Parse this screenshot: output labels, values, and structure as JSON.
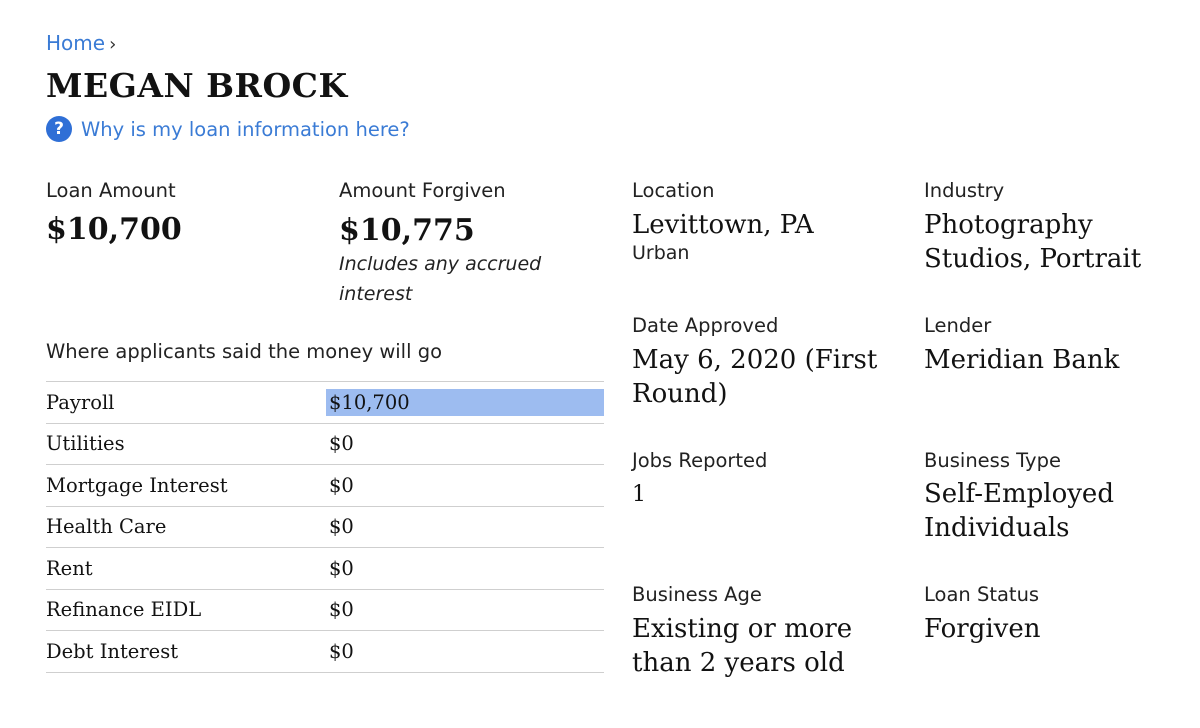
{
  "breadcrumb": {
    "home": "Home",
    "separator": "›"
  },
  "title": "MEGAN BROCK",
  "help_link": {
    "icon": "question-icon",
    "icon_glyph": "?",
    "text": "Why is my loan information here?"
  },
  "loan_amount": {
    "label": "Loan Amount",
    "value": "$10,700"
  },
  "amount_forgiven": {
    "label": "Amount Forgiven",
    "value": "$10,775",
    "note": "Includes any accrued interest"
  },
  "allocation": {
    "heading": "Where applicants said the money will go",
    "rows": [
      {
        "category": "Payroll",
        "amount": "$10,700",
        "highlighted": true
      },
      {
        "category": "Utilities",
        "amount": "$0"
      },
      {
        "category": "Mortgage Interest",
        "amount": "$0"
      },
      {
        "category": "Health Care",
        "amount": "$0"
      },
      {
        "category": "Rent",
        "amount": "$0"
      },
      {
        "category": "Refinance EIDL",
        "amount": "$0"
      },
      {
        "category": "Debt Interest",
        "amount": "$0"
      }
    ]
  },
  "details": {
    "location": {
      "label": "Location",
      "value": "Levittown, PA",
      "sub": "Urban"
    },
    "industry": {
      "label": "Industry",
      "value": "Photography Studios, Portrait"
    },
    "date_approved": {
      "label": "Date Approved",
      "value": "May 6, 2020 (First Round)"
    },
    "lender": {
      "label": "Lender",
      "value": "Meridian Bank"
    },
    "jobs_reported": {
      "label": "Jobs Reported",
      "value": "1"
    },
    "business_type": {
      "label": "Business Type",
      "value": "Self-Employed Individuals"
    },
    "business_age": {
      "label": "Business Age",
      "value": "Existing or more than 2 years old"
    },
    "loan_status": {
      "label": "Loan Status",
      "value": "Forgiven"
    }
  },
  "colors": {
    "link": "#3a7bd5",
    "highlight": "#9dbcf0",
    "icon_bg": "#2f6fd6"
  }
}
